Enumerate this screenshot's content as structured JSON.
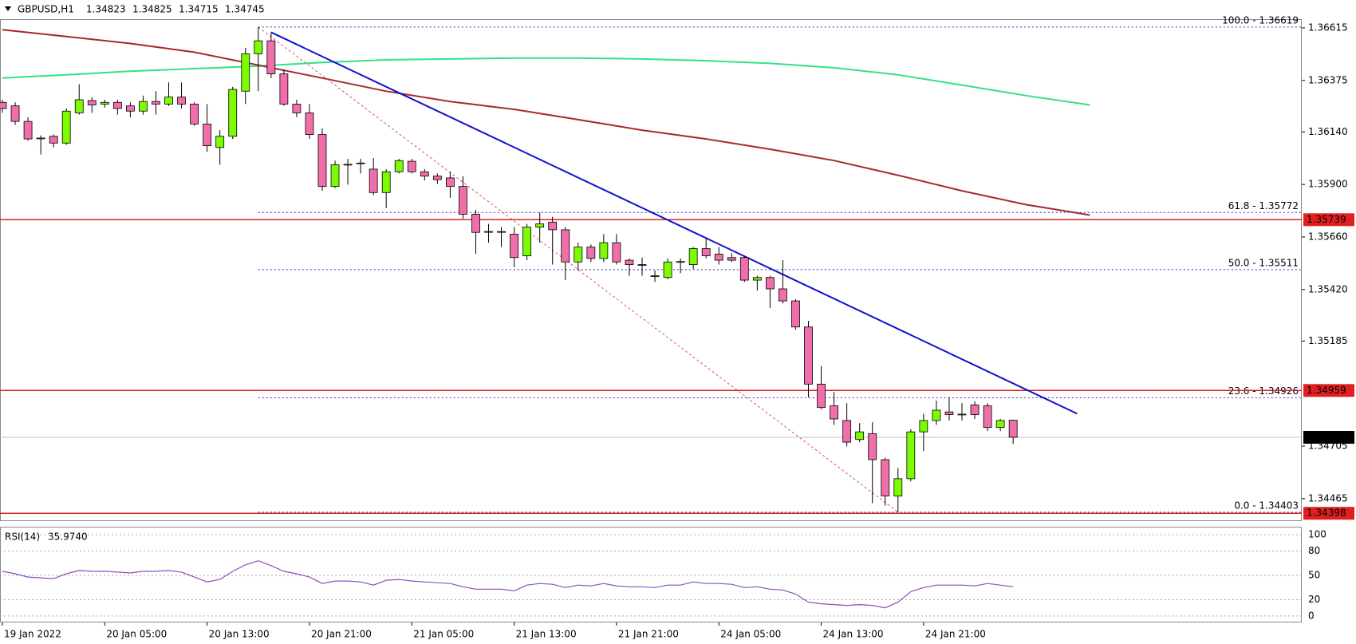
{
  "chart_data": {
    "type": "candlestick",
    "symbol": "GBPUSD,H1",
    "categories": [
      "19 Jan 2022",
      null,
      null,
      null,
      null,
      null,
      null,
      null,
      "20 Jan 05:00",
      null,
      null,
      null,
      null,
      null,
      null,
      null,
      "20 Jan 13:00",
      null,
      null,
      null,
      null,
      null,
      null,
      null,
      "20 Jan 21:00",
      null,
      null,
      null,
      null,
      null,
      null,
      null,
      "21 Jan 05:00",
      null,
      null,
      null,
      null,
      null,
      null,
      null,
      "21 Jan 13:00",
      null,
      null,
      null,
      null,
      null,
      null,
      null,
      "21 Jan 21:00",
      null,
      null,
      null,
      null,
      null,
      null,
      null,
      "24 Jan 05:00",
      null,
      null,
      null,
      null,
      null,
      null,
      null,
      "24 Jan 13:00",
      null,
      null,
      null,
      null,
      null,
      null,
      null,
      "24 Jan 21:00",
      null,
      null,
      null,
      null,
      null,
      null,
      null
    ],
    "open": [
      1.36275,
      1.36259,
      1.36188,
      1.36112,
      1.3612,
      1.36089,
      1.36227,
      1.36283,
      1.36267,
      1.36275,
      1.36259,
      1.36235,
      1.36279,
      1.36267,
      1.36299,
      1.36267,
      1.36176,
      1.36069,
      1.3612,
      1.36326,
      1.36497,
      1.36556,
      1.36405,
      1.36267,
      1.36227,
      1.36128,
      1.35891,
      1.3599,
      1.35998,
      1.3597,
      1.35863,
      1.35958,
      1.36006,
      1.35958,
      1.35938,
      1.3593,
      1.35891,
      1.35764,
      1.35685,
      1.35683,
      1.35673,
      1.35574,
      1.35705,
      1.35728,
      1.35693,
      1.35546,
      1.35614,
      1.35562,
      1.35634,
      1.35554,
      1.35534,
      1.35483,
      1.35475,
      1.35546,
      1.35534,
      1.35607,
      1.35582,
      1.35566,
      1.35566,
      1.35463,
      1.35475,
      1.35423,
      1.35368,
      1.35249,
      1.34988,
      1.34889,
      1.34822,
      1.34735,
      1.34762,
      1.34643,
      1.34477,
      1.34556,
      1.3477,
      1.34822,
      1.34861,
      1.34849,
      1.34893,
      1.34889,
      1.3479,
      1.34823
    ],
    "high": [
      1.36287,
      1.36275,
      1.36207,
      1.36124,
      1.36128,
      1.36247,
      1.36358,
      1.36299,
      1.36287,
      1.36287,
      1.36275,
      1.36306,
      1.36326,
      1.36366,
      1.36366,
      1.36275,
      1.36267,
      1.36148,
      1.36346,
      1.36524,
      1.36619,
      1.36592,
      1.36425,
      1.36287,
      1.36267,
      1.36156,
      1.36009,
      1.36017,
      1.36017,
      1.36021,
      1.3597,
      1.36017,
      1.36017,
      1.3597,
      1.3595,
      1.35958,
      1.35938,
      1.35784,
      1.3572,
      1.35705,
      1.35705,
      1.3572,
      1.35772,
      1.35752,
      1.35705,
      1.35634,
      1.35626,
      1.35673,
      1.35673,
      1.35562,
      1.35566,
      1.35507,
      1.35562,
      1.35562,
      1.35614,
      1.35653,
      1.35614,
      1.35586,
      1.35574,
      1.35483,
      1.35483,
      1.35554,
      1.35376,
      1.35277,
      1.35071,
      1.34952,
      1.34901,
      1.3481,
      1.34814,
      1.34651,
      1.34604,
      1.34782,
      1.34853,
      1.34913,
      1.34928,
      1.34901,
      1.34909,
      1.34901,
      1.34829,
      1.34825
    ],
    "low": [
      1.36227,
      1.36172,
      1.361,
      1.36037,
      1.36069,
      1.36081,
      1.36219,
      1.36227,
      1.36251,
      1.36219,
      1.36207,
      1.36219,
      1.36219,
      1.36259,
      1.36247,
      1.36168,
      1.36049,
      1.3599,
      1.36108,
      1.36267,
      1.36326,
      1.36386,
      1.36259,
      1.36207,
      1.36108,
      1.35871,
      1.35883,
      1.35899,
      1.3595,
      1.35851,
      1.35792,
      1.3595,
      1.3595,
      1.35918,
      1.35902,
      1.35839,
      1.35744,
      1.35582,
      1.35634,
      1.35614,
      1.35522,
      1.35554,
      1.35634,
      1.35534,
      1.35463,
      1.35507,
      1.35546,
      1.35546,
      1.35534,
      1.35483,
      1.35483,
      1.35455,
      1.35467,
      1.35495,
      1.35514,
      1.35562,
      1.35534,
      1.35546,
      1.35455,
      1.35416,
      1.35336,
      1.35356,
      1.35237,
      1.34928,
      1.34873,
      1.34802,
      1.34703,
      1.34723,
      1.34444,
      1.34433,
      1.34403,
      1.34544,
      1.34683,
      1.34802,
      1.34822,
      1.34822,
      1.34829,
      1.34774,
      1.34774,
      1.34715
    ],
    "close": [
      1.36247,
      1.36188,
      1.36108,
      1.3611,
      1.36089,
      1.36235,
      1.36287,
      1.36263,
      1.36275,
      1.36247,
      1.36235,
      1.36279,
      1.36267,
      1.36299,
      1.36267,
      1.36176,
      1.36077,
      1.3612,
      1.36334,
      1.36497,
      1.36556,
      1.36405,
      1.36267,
      1.36227,
      1.36128,
      1.35891,
      1.3599,
      1.35992,
      1.35996,
      1.35863,
      1.35958,
      1.36009,
      1.35958,
      1.35938,
      1.35922,
      1.35891,
      1.35764,
      1.35681,
      1.35683,
      1.35685,
      1.35566,
      1.35705,
      1.3572,
      1.35693,
      1.35546,
      1.35614,
      1.35562,
      1.35634,
      1.35546,
      1.35534,
      1.35532,
      1.35481,
      1.35546,
      1.35548,
      1.35607,
      1.35574,
      1.35554,
      1.35554,
      1.35463,
      1.35475,
      1.35423,
      1.35368,
      1.35249,
      1.34988,
      1.34881,
      1.34829,
      1.34723,
      1.3477,
      1.34643,
      1.34477,
      1.34556,
      1.3477,
      1.34822,
      1.34869,
      1.34849,
      1.34851,
      1.34849,
      1.3479,
      1.34822,
      1.34745
    ],
    "bull_color": "#7cfc00",
    "bear_color": "#f06eaa",
    "ylim": [
      1.34366,
      1.36655
    ],
    "yticks": [
      1.36615,
      1.36375,
      {
        "value": 1.3614,
        "label": "1.36140"
      },
      {
        "value": 1.359,
        "label": "1.35900"
      },
      {
        "value": 1.3566,
        "label": "1.35660"
      },
      {
        "value": 1.3542,
        "label": "1.35420"
      },
      1.35185,
      1.34705,
      1.34465
    ],
    "ma_lines": [
      {
        "color": "#33e08a",
        "x": [
          0,
          5,
          10,
          15,
          20,
          25,
          30,
          35,
          40,
          45,
          50,
          55,
          60,
          65,
          70,
          75,
          80,
          85
        ],
        "values": [
          1.36386,
          1.36401,
          1.36417,
          1.36429,
          1.36441,
          1.36457,
          1.36469,
          1.36473,
          1.36477,
          1.36477,
          1.36473,
          1.36465,
          1.36453,
          1.36433,
          1.36401,
          1.36354,
          1.36306,
          1.36263
        ]
      },
      {
        "color": "#a52a2a",
        "x": [
          0,
          5,
          10,
          15,
          20,
          25,
          30,
          35,
          40,
          45,
          50,
          55,
          60,
          65,
          70,
          75,
          80,
          85
        ],
        "values": [
          1.36607,
          1.36576,
          1.36544,
          1.36504,
          1.36445,
          1.36386,
          1.36326,
          1.36279,
          1.36243,
          1.36196,
          1.36148,
          1.36108,
          1.36061,
          1.36009,
          1.35942,
          1.35871,
          1.35808,
          1.3576
        ]
      }
    ],
    "trendline": {
      "color": "#1010d0",
      "x": [
        21,
        84
      ],
      "values": [
        1.36595,
        1.34853
      ]
    },
    "fib": {
      "color": "#3030c0",
      "levels": [
        {
          "value": 1.36619,
          "label": "100.0 - 1.36619"
        },
        {
          "value": 1.35772,
          "label": "61.8 - 1.35772"
        },
        {
          "value": 1.35511,
          "label": "50.0 - 1.35511"
        },
        {
          "value": 1.34926,
          "label": "23.6 - 1.34926"
        },
        {
          "value": 1.34403,
          "label": "0.0 - 1.34403"
        }
      ]
    },
    "levels": {
      "color": "#e02020",
      "values": [
        1.35739,
        1.34959,
        1.34398
      ]
    },
    "rsi": {
      "label": "RSI(14)",
      "last_label": "35.9740",
      "color": "#8a4fc0",
      "values": [
        55,
        52,
        48,
        47,
        46,
        52,
        56,
        55,
        55,
        54,
        53,
        55,
        55,
        56,
        54,
        48,
        42,
        45,
        55,
        63,
        68,
        62,
        55,
        52,
        48,
        40,
        43,
        43,
        42,
        38,
        44,
        45,
        43,
        42,
        41,
        40,
        36,
        33,
        33,
        33,
        31,
        38,
        40,
        39,
        35,
        38,
        37,
        40,
        37,
        36,
        36,
        35,
        38,
        38,
        42,
        40,
        40,
        39,
        35,
        36,
        33,
        32,
        27,
        17,
        15,
        14,
        13,
        14,
        13,
        10,
        17,
        30,
        35,
        38,
        38,
        38,
        37,
        40,
        38,
        35.974
      ],
      "ylim": [
        -8,
        110
      ],
      "yticks": [
        100,
        80,
        50,
        20,
        0
      ]
    }
  }
}
